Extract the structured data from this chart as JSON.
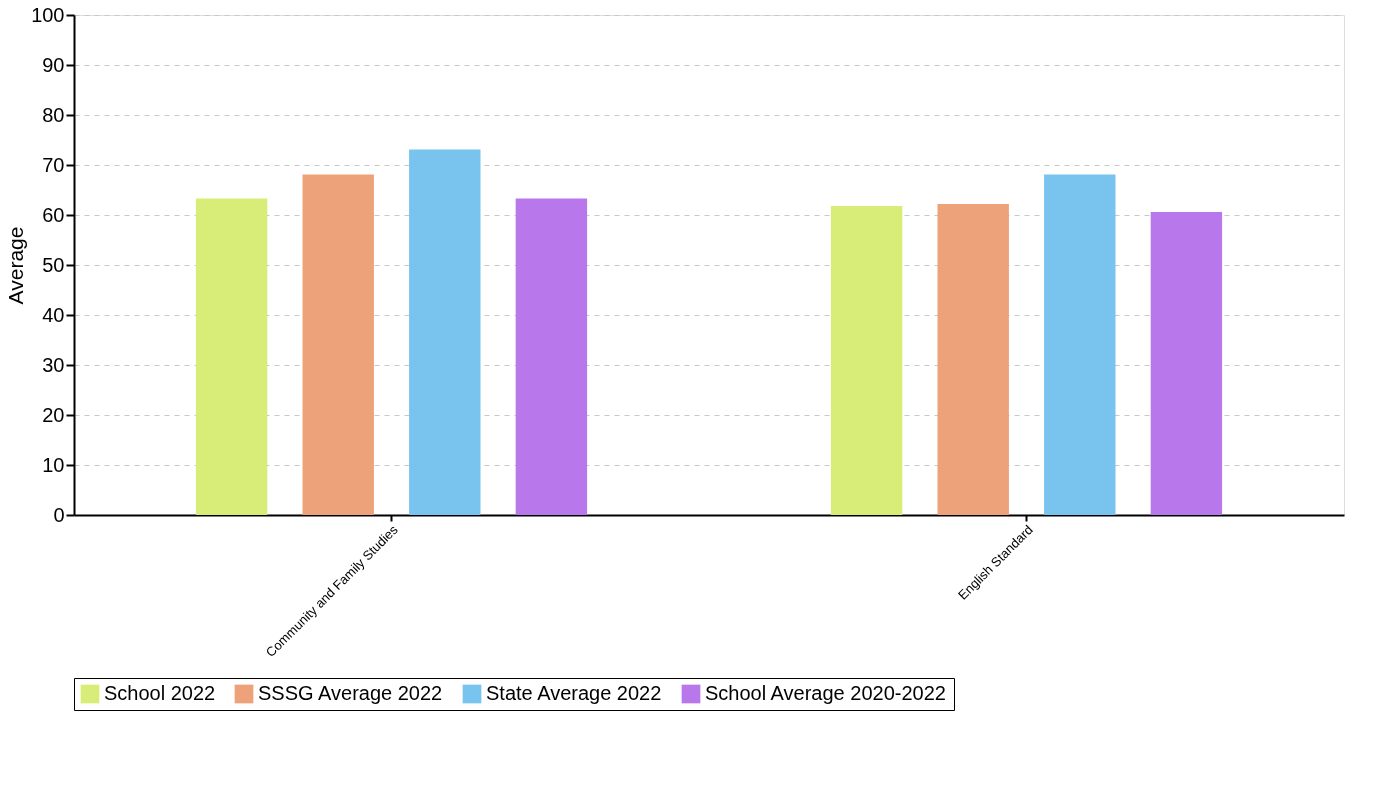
{
  "chart_data": {
    "type": "bar",
    "ylabel": "Average",
    "categories": [
      "Community and Family Studies",
      "English Standard"
    ],
    "series": [
      {
        "name": "School 2022",
        "color": "#d7ed77",
        "values": [
          63.3,
          61.8
        ]
      },
      {
        "name": "SSSG Average 2022",
        "color": "#eea279",
        "values": [
          68.1,
          62.2
        ]
      },
      {
        "name": "State Average 2022",
        "color": "#78c4ee",
        "values": [
          73.1,
          68.1
        ]
      },
      {
        "name": "School Average 2020-2022",
        "color": "#b977ec",
        "values": [
          63.3,
          60.6
        ]
      }
    ],
    "ylim": [
      0,
      100
    ],
    "yticks": [
      0,
      10,
      20,
      30,
      40,
      50,
      60,
      70,
      80,
      90,
      100
    ],
    "grid": "y",
    "legend": "bottom"
  }
}
